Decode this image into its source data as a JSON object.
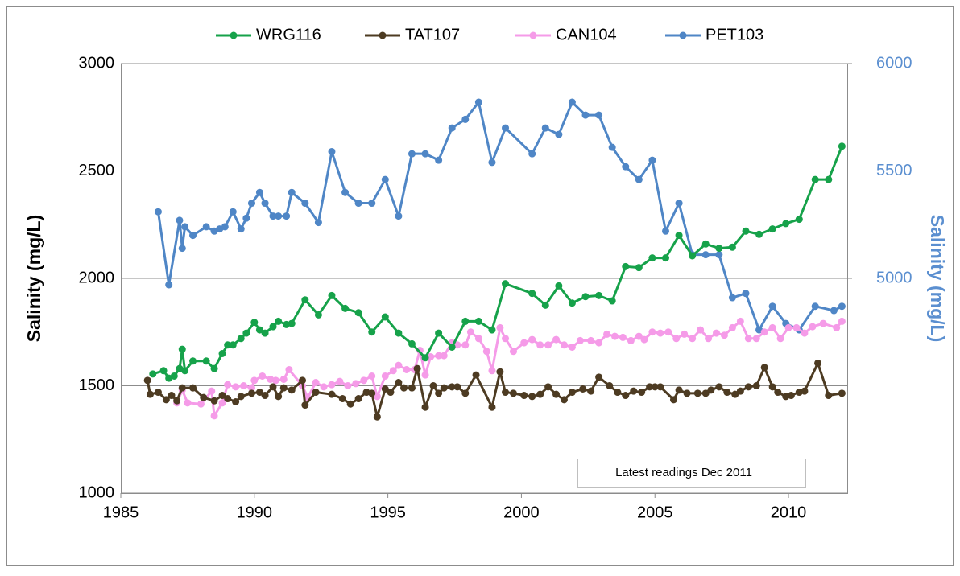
{
  "chart_data": {
    "type": "line",
    "y_label": "Salinity (mg/L)",
    "y2_label": "Salinity (mg/L)",
    "annotation": "Latest readings Dec 2011",
    "xlim": [
      1985,
      2012.2
    ],
    "xticks": [
      1985,
      1990,
      1995,
      2000,
      2005,
      2010
    ],
    "ylim": [
      1000,
      3000
    ],
    "yticks": [
      1000,
      1500,
      2000,
      2500,
      3000
    ],
    "y2lim": [
      4000,
      6000
    ],
    "y2ticks": [
      5000,
      5500,
      6000
    ],
    "y2_color": "#5b8fd0",
    "grid": true,
    "legend": "top",
    "series": [
      {
        "name": "WRG116",
        "color": "#16a24a",
        "x": [
          1986.2,
          1986.6,
          1986.8,
          1987.0,
          1987.2,
          1987.3,
          1987.4,
          1987.7,
          1988.2,
          1988.5,
          1988.8,
          1989.0,
          1989.2,
          1989.5,
          1989.7,
          1990.0,
          1990.2,
          1990.4,
          1990.7,
          1990.9,
          1991.2,
          1991.4,
          1991.9,
          1992.4,
          1992.9,
          1993.4,
          1993.9,
          1994.4,
          1994.9,
          1995.4,
          1995.9,
          1996.4,
          1996.9,
          1997.4,
          1997.9,
          1998.4,
          1998.9,
          1999.4,
          2000.4,
          2000.9,
          2001.4,
          2001.9,
          2002.4,
          2002.9,
          2003.4,
          2003.9,
          2004.4,
          2004.9,
          2005.4,
          2005.9,
          2006.4,
          2006.9,
          2007.4,
          2007.9,
          2008.4,
          2008.9,
          2009.4,
          2009.9,
          2010.4,
          2011.0,
          2011.5,
          2012.0
        ],
        "values": [
          1555,
          1570,
          1535,
          1545,
          1580,
          1670,
          1570,
          1615,
          1615,
          1580,
          1650,
          1690,
          1690,
          1720,
          1745,
          1795,
          1760,
          1745,
          1775,
          1800,
          1785,
          1790,
          1900,
          1830,
          1920,
          1860,
          1840,
          1750,
          1820,
          1745,
          1695,
          1630,
          1745,
          1680,
          1800,
          1800,
          1760,
          1975,
          1930,
          1875,
          1965,
          1885,
          1915,
          1920,
          1895,
          2055,
          2050,
          2095,
          2095,
          2200,
          2105,
          2160,
          2140,
          2145,
          2220,
          2205,
          2230,
          2255,
          2275,
          2460,
          2460,
          2615
        ]
      },
      {
        "name": "TAT107",
        "color": "#4d3b22",
        "x": [
          1986.0,
          1986.1,
          1986.4,
          1986.7,
          1986.9,
          1987.1,
          1987.3,
          1987.7,
          1988.1,
          1988.5,
          1988.8,
          1989.0,
          1989.3,
          1989.5,
          1989.9,
          1990.2,
          1990.4,
          1990.7,
          1990.9,
          1991.1,
          1991.4,
          1991.8,
          1991.9,
          1992.3,
          1992.9,
          1993.3,
          1993.6,
          1993.9,
          1994.2,
          1994.4,
          1994.6,
          1994.9,
          1995.1,
          1995.4,
          1995.6,
          1995.9,
          1996.1,
          1996.4,
          1996.7,
          1996.9,
          1997.1,
          1997.4,
          1997.6,
          1997.9,
          1998.3,
          1998.9,
          1999.2,
          1999.4,
          1999.7,
          2000.1,
          2000.4,
          2000.7,
          2001.0,
          2001.3,
          2001.6,
          2001.9,
          2002.3,
          2002.6,
          2002.9,
          2003.3,
          2003.6,
          2003.9,
          2004.2,
          2004.5,
          2004.8,
          2005.0,
          2005.2,
          2005.7,
          2005.9,
          2006.2,
          2006.6,
          2006.9,
          2007.1,
          2007.4,
          2007.7,
          2008.0,
          2008.2,
          2008.5,
          2008.8,
          2009.1,
          2009.4,
          2009.6,
          2009.9,
          2010.1,
          2010.4,
          2010.6,
          2011.1,
          2011.5,
          2012.0
        ],
        "values": [
          1525,
          1460,
          1470,
          1435,
          1455,
          1430,
          1490,
          1490,
          1445,
          1430,
          1455,
          1440,
          1425,
          1450,
          1465,
          1470,
          1455,
          1495,
          1450,
          1490,
          1480,
          1525,
          1410,
          1470,
          1460,
          1440,
          1415,
          1440,
          1470,
          1465,
          1355,
          1485,
          1470,
          1515,
          1490,
          1490,
          1580,
          1400,
          1500,
          1465,
          1490,
          1495,
          1495,
          1465,
          1550,
          1400,
          1565,
          1470,
          1465,
          1455,
          1450,
          1460,
          1495,
          1460,
          1435,
          1470,
          1485,
          1475,
          1540,
          1500,
          1470,
          1455,
          1475,
          1470,
          1495,
          1495,
          1495,
          1435,
          1480,
          1465,
          1465,
          1465,
          1480,
          1495,
          1470,
          1460,
          1475,
          1495,
          1500,
          1585,
          1495,
          1470,
          1450,
          1455,
          1470,
          1475,
          1605,
          1455,
          1465
        ]
      },
      {
        "name": "CAN104",
        "color": "#f59be8",
        "x": [
          1987.1,
          1987.3,
          1987.5,
          1988.0,
          1988.4,
          1988.5,
          1988.8,
          1989.0,
          1989.3,
          1989.6,
          1989.9,
          1990.0,
          1990.3,
          1990.6,
          1990.8,
          1991.1,
          1991.3,
          1991.8,
          1992.0,
          1992.3,
          1992.6,
          1992.9,
          1993.2,
          1993.5,
          1993.8,
          1994.1,
          1994.4,
          1994.6,
          1994.9,
          1995.2,
          1995.4,
          1995.7,
          1996.0,
          1996.2,
          1996.4,
          1996.6,
          1996.9,
          1997.1,
          1997.4,
          1997.6,
          1997.9,
          1998.1,
          1998.4,
          1998.7,
          1998.9,
          1999.2,
          1999.4,
          1999.7,
          2000.1,
          2000.4,
          2000.7,
          2001.0,
          2001.3,
          2001.6,
          2001.9,
          2002.2,
          2002.6,
          2002.9,
          2003.2,
          2003.5,
          2003.8,
          2004.1,
          2004.4,
          2004.6,
          2004.9,
          2005.2,
          2005.5,
          2005.8,
          2006.1,
          2006.4,
          2006.7,
          2007.0,
          2007.3,
          2007.6,
          2007.9,
          2008.2,
          2008.5,
          2008.8,
          2009.1,
          2009.4,
          2009.7,
          2010.0,
          2010.3,
          2010.6,
          2010.9,
          2011.3,
          2011.8,
          2012.0
        ],
        "values": [
          1420,
          1480,
          1420,
          1415,
          1475,
          1360,
          1420,
          1505,
          1495,
          1500,
          1490,
          1525,
          1545,
          1530,
          1525,
          1530,
          1575,
          1500,
          1445,
          1515,
          1495,
          1505,
          1520,
          1500,
          1510,
          1525,
          1545,
          1450,
          1545,
          1570,
          1595,
          1575,
          1575,
          1665,
          1550,
          1635,
          1640,
          1640,
          1700,
          1690,
          1690,
          1750,
          1720,
          1660,
          1570,
          1770,
          1720,
          1660,
          1700,
          1715,
          1690,
          1690,
          1715,
          1690,
          1680,
          1710,
          1710,
          1700,
          1740,
          1730,
          1725,
          1710,
          1730,
          1715,
          1750,
          1745,
          1750,
          1720,
          1740,
          1720,
          1760,
          1720,
          1745,
          1735,
          1770,
          1800,
          1720,
          1720,
          1750,
          1770,
          1720,
          1770,
          1770,
          1745,
          1775,
          1790,
          1770,
          1800
        ]
      },
      {
        "name": "PET103",
        "color": "#4f86c6",
        "axis": "y2",
        "x": [
          1986.4,
          1986.8,
          1987.2,
          1987.3,
          1987.4,
          1987.7,
          1988.2,
          1988.5,
          1988.7,
          1988.9,
          1989.2,
          1989.5,
          1989.7,
          1989.9,
          1990.2,
          1990.4,
          1990.7,
          1990.9,
          1991.2,
          1991.4,
          1991.9,
          1992.4,
          1992.9,
          1993.4,
          1993.9,
          1994.4,
          1994.9,
          1995.4,
          1995.9,
          1996.4,
          1996.9,
          1997.4,
          1997.9,
          1998.4,
          1998.9,
          1999.4,
          2000.4,
          2000.9,
          2001.4,
          2001.9,
          2002.4,
          2002.9,
          2003.4,
          2003.9,
          2004.4,
          2004.9,
          2005.4,
          2005.9,
          2006.4,
          2006.9,
          2007.4,
          2007.9,
          2008.4,
          2008.9,
          2009.4,
          2009.9,
          2010.4,
          2011.0,
          2011.7,
          2012.0
        ],
        "values": [
          5310,
          4970,
          5270,
          5140,
          5240,
          5200,
          5240,
          5220,
          5230,
          5240,
          5310,
          5230,
          5280,
          5350,
          5400,
          5350,
          5290,
          5290,
          5290,
          5400,
          5350,
          5260,
          5590,
          5400,
          5350,
          5350,
          5460,
          5290,
          5580,
          5580,
          5550,
          5700,
          5740,
          5820,
          5540,
          5700,
          5580,
          5700,
          5670,
          5820,
          5760,
          5760,
          5610,
          5520,
          5460,
          5550,
          5220,
          5350,
          5110,
          5110,
          5110,
          4910,
          4930,
          4760,
          4870,
          4790,
          4760,
          4870,
          4850,
          4870
        ]
      }
    ]
  }
}
